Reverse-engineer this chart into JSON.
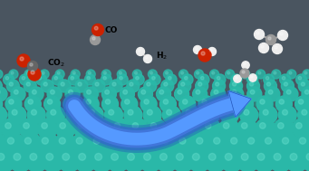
{
  "bg_color": "#4a5560",
  "surface_color": "#2ab8a8",
  "surface_color_stem": "#1a9988",
  "arrow_color": "#4488ee",
  "fig_width": 3.41,
  "fig_height": 1.89,
  "dpi": 100,
  "co2_label": "CO$_2$",
  "co_label": "CO",
  "h2_label": "H$_2$",
  "atom_C_color": "#666666",
  "atom_O_color": "#cc2200",
  "atom_H_color": "#eeeeee",
  "atom_gray_color": "#999999"
}
